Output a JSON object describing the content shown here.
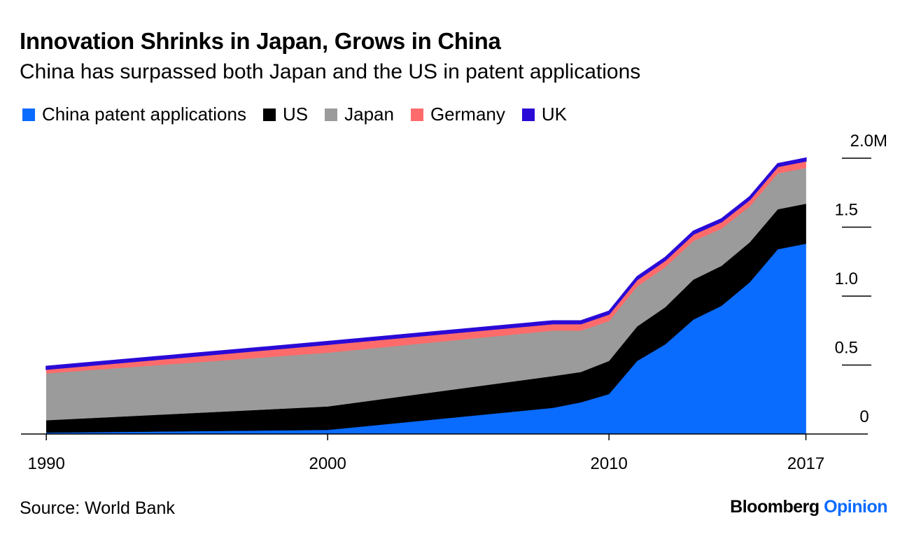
{
  "title": "Innovation Shrinks in Japan, Grows in China",
  "subtitle": "China has surpassed both Japan and the US in patent applications",
  "source": "Source: World Bank",
  "brand": {
    "name": "Bloomberg",
    "accent": "Opinion",
    "accent_color": "#0a6bff"
  },
  "chart_data": {
    "type": "area",
    "stacked": true,
    "x": [
      1990,
      2000,
      2008,
      2009,
      2010,
      2011,
      2012,
      2013,
      2014,
      2015,
      2016,
      2017
    ],
    "series": [
      {
        "name": "China patent applications",
        "color": "#0a6bff",
        "values": [
          0.01,
          0.03,
          0.19,
          0.23,
          0.29,
          0.53,
          0.65,
          0.83,
          0.93,
          1.1,
          1.34,
          1.38
        ]
      },
      {
        "name": "US",
        "color": "#000000",
        "values": [
          0.09,
          0.17,
          0.23,
          0.22,
          0.24,
          0.25,
          0.27,
          0.29,
          0.29,
          0.29,
          0.29,
          0.29
        ]
      },
      {
        "name": "Japan",
        "color": "#9b9b9b",
        "values": [
          0.34,
          0.39,
          0.33,
          0.3,
          0.29,
          0.29,
          0.29,
          0.28,
          0.27,
          0.26,
          0.26,
          0.26
        ]
      },
      {
        "name": "Germany",
        "color": "#ff6b6b",
        "values": [
          0.03,
          0.06,
          0.05,
          0.05,
          0.05,
          0.05,
          0.05,
          0.05,
          0.05,
          0.05,
          0.05,
          0.05
        ]
      },
      {
        "name": "UK",
        "color": "#2a0ad6",
        "values": [
          0.02,
          0.02,
          0.02,
          0.02,
          0.02,
          0.02,
          0.02,
          0.02,
          0.02,
          0.02,
          0.02,
          0.02
        ]
      }
    ],
    "xticks": [
      1990,
      2000,
      2010,
      2017
    ],
    "xtick_labels": [
      "1990",
      "2000",
      "2010",
      "2017"
    ],
    "yticks": [
      0,
      0.5,
      1.0,
      1.5,
      2.0
    ],
    "ytick_labels": [
      "0",
      "0.5",
      "1.0",
      "1.5",
      "2.0M"
    ],
    "ylim": [
      0,
      2.0
    ],
    "xlim": [
      1989.1,
      2019.2
    ],
    "y_axis_side": "right",
    "legend_position": "top-left",
    "grid": false
  }
}
